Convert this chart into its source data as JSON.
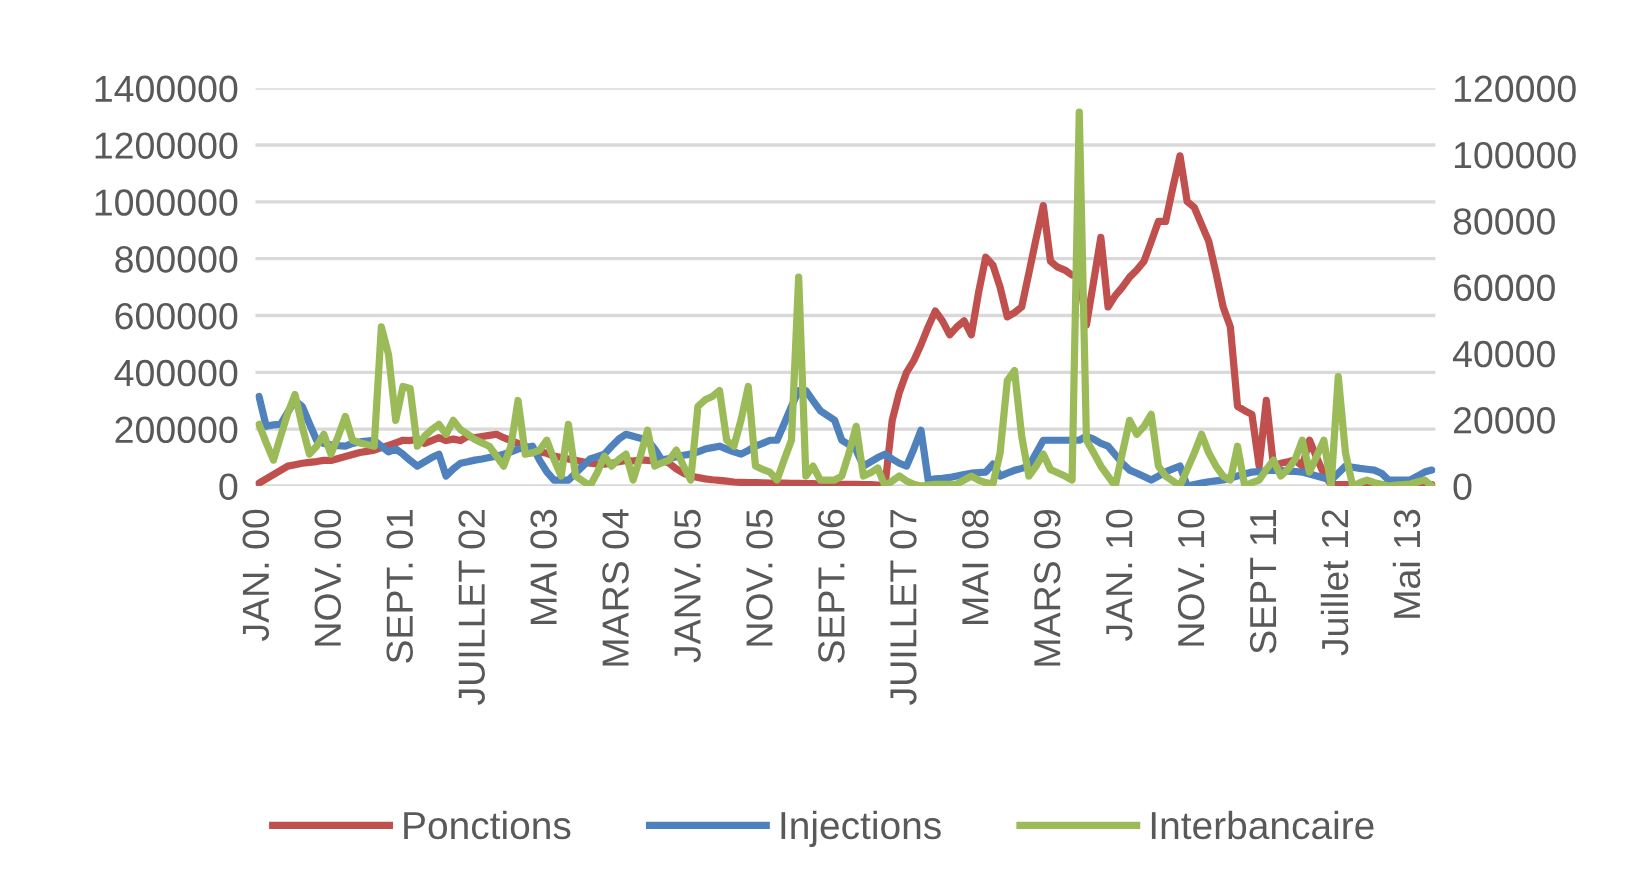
{
  "chart_data": {
    "type": "line",
    "categories": [
      "JAN. 00",
      null,
      null,
      null,
      null,
      null,
      null,
      null,
      null,
      null,
      "NOV. 00",
      null,
      null,
      null,
      null,
      null,
      null,
      null,
      null,
      null,
      "SEPT. 01",
      null,
      null,
      null,
      null,
      null,
      null,
      null,
      null,
      null,
      "JUILLET 02",
      null,
      null,
      null,
      null,
      null,
      null,
      null,
      null,
      null,
      "MAI 03",
      null,
      null,
      null,
      null,
      null,
      null,
      null,
      null,
      null,
      "MARS 04",
      null,
      null,
      null,
      null,
      null,
      null,
      null,
      null,
      null,
      "JANV. 05",
      null,
      null,
      null,
      null,
      null,
      null,
      null,
      null,
      null,
      "NOV. 05",
      null,
      null,
      null,
      null,
      null,
      null,
      null,
      null,
      null,
      "SEPT. 06",
      null,
      null,
      null,
      null,
      null,
      null,
      null,
      null,
      null,
      "JUILLET 07",
      null,
      null,
      null,
      null,
      null,
      null,
      null,
      null,
      null,
      "MAI 08",
      null,
      null,
      null,
      null,
      null,
      null,
      null,
      null,
      null,
      "MARS 09",
      null,
      null,
      null,
      null,
      null,
      null,
      null,
      null,
      null,
      "JAN. 10",
      null,
      null,
      null,
      null,
      null,
      null,
      null,
      null,
      null,
      "NOV. 10",
      null,
      null,
      null,
      null,
      null,
      null,
      null,
      null,
      null,
      "SEPT 11",
      null,
      null,
      null,
      null,
      null,
      null,
      null,
      null,
      null,
      "Juillet 12",
      null,
      null,
      null,
      null,
      null,
      null,
      null,
      null,
      null,
      "Mai 13",
      null,
      null,
      null
    ],
    "series": [
      {
        "name": "Ponctions",
        "color": "#c0504d",
        "values": [
          10000,
          25000,
          40000,
          55000,
          70000,
          75000,
          80000,
          83000,
          86000,
          90000,
          90000,
          97000,
          104000,
          111000,
          118000,
          122000,
          126000,
          135000,
          143000,
          152000,
          161000,
          160000,
          165000,
          150000,
          160000,
          170000,
          160000,
          165000,
          160000,
          175000,
          170000,
          174000,
          178000,
          182000,
          170000,
          160000,
          150000,
          140000,
          126000,
          120000,
          115000,
          105000,
          100000,
          95000,
          90000,
          85000,
          80000,
          78000,
          77000,
          80000,
          85000,
          90000,
          88000,
          92000,
          90000,
          88000,
          91000,
          80000,
          60000,
          45000,
          35000,
          30000,
          25000,
          22000,
          20000,
          17000,
          14000,
          13000,
          12000,
          12000,
          11000,
          10000,
          10000,
          10000,
          9000,
          9000,
          8000,
          8000,
          7000,
          7000,
          7000,
          6000,
          6000,
          6000,
          5000,
          5000,
          3000,
          0,
          231000,
          330000,
          400000,
          441000,
          497000,
          560000,
          616000,
          580000,
          532000,
          560000,
          581000,
          532000,
          680000,
          805000,
          777000,
          700000,
          595000,
          610000,
          630000,
          750000,
          870000,
          987000,
          791000,
          770000,
          760000,
          742000,
          742000,
          567000,
          720000,
          875000,
          630000,
          670000,
          700000,
          735000,
          760000,
          791000,
          860000,
          931000,
          931000,
          1050000,
          1162000,
          1001000,
          980000,
          920000,
          861000,
          750000,
          630000,
          560000,
          280000,
          265000,
          252000,
          70000,
          301000,
          70000,
          80000,
          85000,
          91000,
          70000,
          161000,
          100000,
          42000,
          5000,
          5000,
          5000,
          5000,
          5000,
          5000,
          5000,
          5000,
          5000,
          5000,
          5000,
          5000,
          5000,
          5000,
          5000
        ]
      },
      {
        "name": "Injections",
        "color": "#4f81bd",
        "values": [
          315000,
          210000,
          215000,
          217000,
          260000,
          301000,
          280000,
          220000,
          161000,
          150000,
          145000,
          142000,
          140000,
          150000,
          155000,
          158000,
          161000,
          140000,
          120000,
          130000,
          112000,
          90000,
          70000,
          85000,
          100000,
          112000,
          35000,
          60000,
          80000,
          85000,
          91000,
          95000,
          100000,
          105000,
          112000,
          120000,
          130000,
          135000,
          140000,
          90000,
          50000,
          21000,
          21000,
          21000,
          45000,
          70000,
          95000,
          103000,
          112000,
          140000,
          165000,
          182000,
          175000,
          168000,
          161000,
          130000,
          91000,
          97000,
          103000,
          108000,
          112000,
          120000,
          130000,
          135000,
          140000,
          130000,
          120000,
          112000,
          125000,
          140000,
          150000,
          161000,
          161000,
          220000,
          280000,
          336000,
          336000,
          300000,
          265000,
          248000,
          231000,
          161000,
          145000,
          126000,
          70000,
          85000,
          100000,
          112000,
          95000,
          80000,
          70000,
          130000,
          196000,
          21000,
          25000,
          27000,
          30000,
          35000,
          40000,
          45000,
          47000,
          49000,
          77000,
          35000,
          45000,
          55000,
          62000,
          70000,
          115000,
          161000,
          161000,
          161000,
          161000,
          161000,
          161000,
          175000,
          165000,
          150000,
          140000,
          110000,
          80000,
          56000,
          45000,
          33000,
          21000,
          35000,
          50000,
          60000,
          70000,
          0,
          5000,
          10000,
          15000,
          18000,
          21000,
          28000,
          35000,
          42000,
          49000,
          51000,
          54000,
          56000,
          54000,
          52000,
          51000,
          49000,
          42000,
          35000,
          28000,
          21000,
          45000,
          70000,
          66000,
          62000,
          59000,
          56000,
          45000,
          21000,
          21000,
          21000,
          21000,
          35000,
          49000,
          56000
        ]
      },
      {
        "name": "Interbancaire",
        "color": "#9bbb59",
        "axis": "y2",
        "values": [
          18600,
          13000,
          7800,
          15000,
          22000,
          27600,
          18000,
          9600,
          12000,
          15600,
          9600,
          15000,
          21000,
          13800,
          13000,
          12500,
          12000,
          48000,
          39600,
          19800,
          30000,
          29400,
          12000,
          15000,
          17000,
          18600,
          15600,
          19800,
          17000,
          15600,
          14000,
          13000,
          12000,
          9000,
          6000,
          12000,
          25800,
          9600,
          10000,
          10800,
          13800,
          8000,
          3000,
          18600,
          3000,
          1500,
          0,
          4000,
          9000,
          6000,
          8000,
          9600,
          1800,
          9000,
          16800,
          6000,
          7000,
          7800,
          10800,
          6000,
          1800,
          24000,
          26000,
          27000,
          28800,
          13800,
          12000,
          20000,
          30000,
          6000,
          5000,
          4200,
          1800,
          8000,
          13800,
          63000,
          3000,
          6000,
          1800,
          1800,
          1800,
          3000,
          10000,
          18000,
          3000,
          4000,
          5400,
          0,
          1500,
          3000,
          1500,
          500,
          0,
          300,
          500,
          500,
          500,
          600,
          1800,
          3000,
          1800,
          1000,
          600,
          10000,
          31800,
          34800,
          15000,
          3000,
          6000,
          9600,
          5000,
          4000,
          3000,
          1800,
          112800,
          13800,
          10000,
          6000,
          3000,
          0,
          10000,
          19800,
          15600,
          18000,
          21600,
          6000,
          3000,
          1500,
          0,
          5000,
          10000,
          15600,
          10000,
          6000,
          3000,
          1800,
          12000,
          0,
          1000,
          1800,
          5000,
          7800,
          3000,
          5000,
          8000,
          13800,
          4200,
          9000,
          13800,
          0,
          33000,
          10000,
          0,
          1000,
          1800,
          1000,
          500,
          0,
          300,
          400,
          600,
          1200,
          1800,
          0
        ]
      }
    ],
    "ylim": [
      0,
      1400000
    ],
    "yticks": [
      0,
      200000,
      400000,
      600000,
      800000,
      1000000,
      1200000,
      1400000
    ],
    "y2lim": [
      0,
      120000
    ],
    "y2ticks": [
      0,
      20000,
      40000,
      60000,
      80000,
      100000,
      120000
    ],
    "grid": "y",
    "legend": "bottom",
    "marker": "none",
    "line_style": "solid"
  }
}
